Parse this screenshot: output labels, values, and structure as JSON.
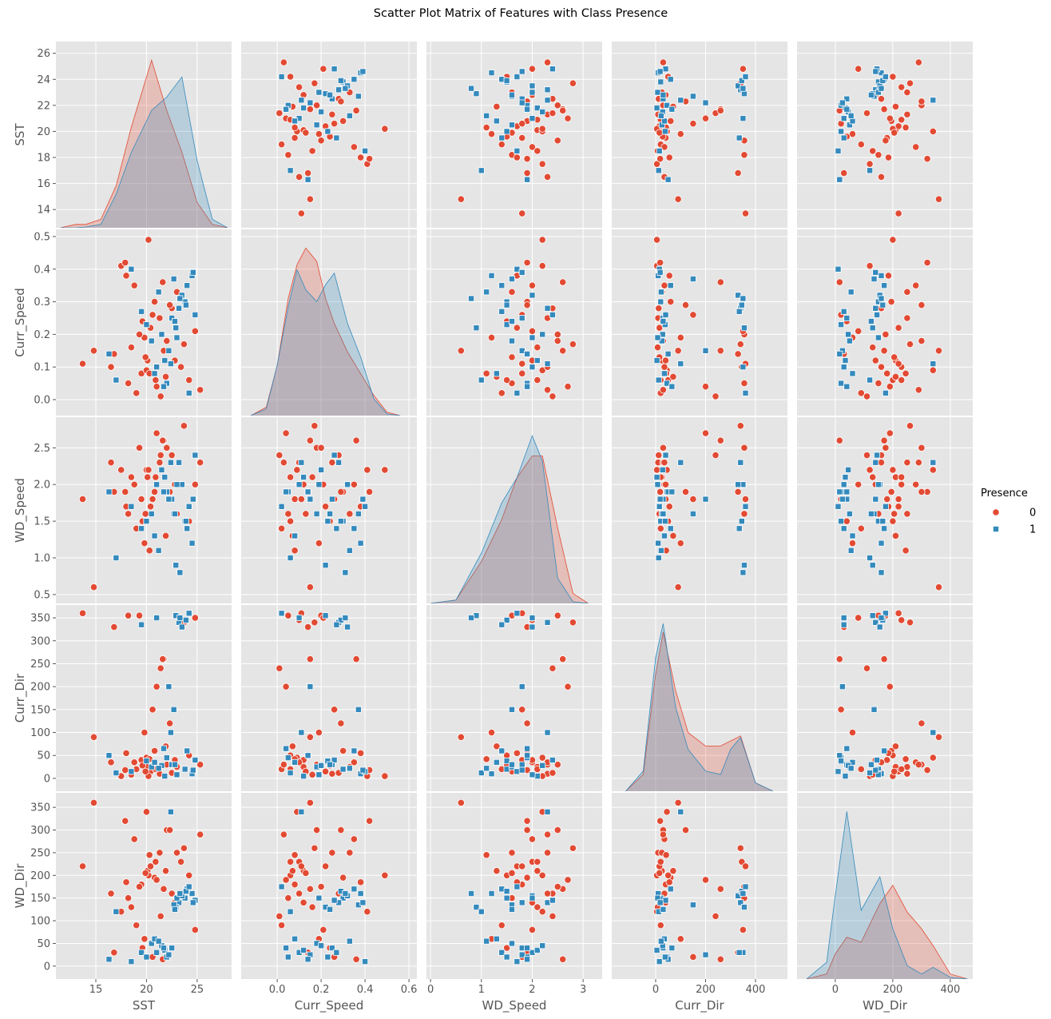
{
  "chart_data": {
    "type": "pairplot",
    "title": "Scatter Plot Matrix of Features with Class Presence",
    "legend_title": "Presence",
    "legend": "right",
    "grid": true,
    "variables": [
      {
        "name": "SST",
        "xlim": [
          11.06,
          28.4
        ],
        "ylim": [
          12.6,
          26.9
        ],
        "ticks_x": [
          15,
          20,
          25
        ],
        "ticks_y": [
          14,
          16,
          18,
          20,
          22,
          24,
          26
        ],
        "kde_x": [
          11.5,
          13,
          14,
          15.5,
          17,
          18.5,
          20.5,
          22,
          23.5,
          25,
          26.5,
          28
        ],
        "kde": [
          [
            0,
            0.02,
            0.02,
            0.05,
            0.25,
            0.6,
            1.0,
            0.7,
            0.45,
            0.15,
            0.02,
            0
          ],
          [
            0,
            0,
            0.005,
            0.02,
            0.2,
            0.45,
            0.7,
            0.78,
            0.9,
            0.4,
            0.05,
            0
          ]
        ]
      },
      {
        "name": "Curr_Speed",
        "xlim": [
          -0.164,
          0.636
        ],
        "ylim": [
          -0.049,
          0.522
        ],
        "ticks_x": [
          {
            "value": 0,
            "label": "0.0"
          },
          0.2,
          0.4,
          0.6
        ],
        "ticks_y": [
          {
            "value": 0,
            "label": "0.0"
          },
          0.1,
          0.2,
          0.3,
          0.4,
          0.5
        ],
        "kde_x": [
          -0.12,
          -0.05,
          0,
          0.05,
          0.09,
          0.13,
          0.18,
          0.22,
          0.26,
          0.32,
          0.38,
          0.44,
          0.5,
          0.56
        ],
        "kde": [
          [
            0,
            0.05,
            0.3,
            0.7,
            0.9,
            1.0,
            0.92,
            0.7,
            0.55,
            0.38,
            0.25,
            0.12,
            0.02,
            0
          ],
          [
            0,
            0.04,
            0.3,
            0.65,
            0.87,
            0.75,
            0.68,
            0.78,
            0.85,
            0.55,
            0.35,
            0.1,
            0.01,
            0
          ]
        ]
      },
      {
        "name": "WD_Speed",
        "xlim": [
          -0.08,
          3.375
        ],
        "ylim": [
          0.379,
          2.918
        ],
        "ticks_x": [
          0,
          1,
          2,
          3
        ],
        "ticks_y": [
          0.5,
          {
            "value": 1,
            "label": "1.0"
          },
          1.5,
          {
            "value": 2,
            "label": "2.0"
          },
          2.5
        ],
        "kde_x": [
          0,
          0.5,
          1.0,
          1.4,
          1.7,
          2.0,
          2.2,
          2.5,
          2.8,
          3.1
        ],
        "kde": [
          [
            0,
            0.02,
            0.25,
            0.5,
            0.75,
            0.88,
            0.88,
            0.45,
            0.06,
            0
          ],
          [
            0,
            0.02,
            0.3,
            0.6,
            0.75,
            1.0,
            0.85,
            0.15,
            0.01,
            0
          ]
        ]
      },
      {
        "name": "Curr_Dir",
        "xlim": [
          -176,
          528
        ],
        "ylim": [
          -28,
          378
        ],
        "ticks_x": [
          0,
          200,
          400
        ],
        "ticks_y": [
          0,
          50,
          100,
          150,
          200,
          250,
          300,
          350
        ],
        "kde_x": [
          -120,
          -50,
          0,
          30,
          80,
          130,
          200,
          260,
          300,
          340,
          400,
          470
        ],
        "kde": [
          [
            0,
            0.1,
            0.7,
            0.95,
            0.6,
            0.35,
            0.27,
            0.27,
            0.3,
            0.33,
            0.05,
            0
          ],
          [
            0,
            0.12,
            0.8,
            1.0,
            0.5,
            0.25,
            0.12,
            0.1,
            0.25,
            0.32,
            0.05,
            0
          ]
        ]
      },
      {
        "name": "WD_Dir",
        "xlim": [
          -133,
          478
        ],
        "ylim": [
          -28.5,
          382
        ],
        "ticks_x": [
          0,
          200,
          400
        ],
        "ticks_y": [
          0,
          50,
          100,
          150,
          200,
          250,
          300,
          350
        ],
        "kde_x": [
          -100,
          -30,
          0,
          40,
          90,
          155,
          200,
          250,
          300,
          340,
          400,
          460
        ],
        "kde": [
          [
            0,
            0.03,
            0.15,
            0.25,
            0.22,
            0.45,
            0.56,
            0.4,
            0.3,
            0.2,
            0.03,
            0
          ],
          [
            0,
            0.1,
            0.5,
            1.0,
            0.41,
            0.61,
            0.3,
            0.08,
            0.03,
            0.07,
            0.01,
            0
          ]
        ]
      }
    ],
    "series": [
      {
        "name": "0",
        "color": "#e24a33",
        "marker": "circle",
        "values": [
          [
            20.1,
            0.12,
            2.1,
            25,
            210
          ],
          [
            19.5,
            0.08,
            1.8,
            40,
            180
          ],
          [
            21.3,
            0.25,
            2.3,
            10,
            250
          ],
          [
            18.2,
            0.05,
            1.6,
            355,
            150
          ],
          [
            22.0,
            0.18,
            2.5,
            30,
            300
          ],
          [
            20.8,
            0.3,
            1.9,
            60,
            195
          ],
          [
            17.5,
            0.41,
            2.2,
            5,
            120
          ],
          [
            23.4,
            0.1,
            2.0,
            345,
            230
          ],
          [
            19.0,
            0.02,
            1.4,
            20,
            90
          ],
          [
            21.7,
            0.15,
            2.6,
            260,
            170
          ],
          [
            20.4,
            0.22,
            1.7,
            15,
            220
          ],
          [
            18.8,
            0.35,
            2.0,
            35,
            280
          ],
          [
            24.2,
            0.06,
            1.5,
            50,
            200
          ],
          [
            16.8,
            0.14,
            1.9,
            330,
            30
          ],
          [
            22.5,
            0.28,
            2.4,
            12,
            160
          ],
          [
            20.0,
            0.09,
            2.2,
            45,
            340
          ],
          [
            13.7,
            0.11,
            1.8,
            360,
            220
          ],
          [
            19.8,
            0.19,
            1.2,
            100,
            60
          ],
          [
            21.0,
            0.04,
            2.7,
            200,
            190
          ],
          [
            23.0,
            0.33,
            1.6,
            25,
            250
          ],
          [
            18.5,
            0.16,
            2.1,
            8,
            130
          ],
          [
            20.6,
            0.26,
            1.8,
            150,
            20
          ],
          [
            25.3,
            0.03,
            2.3,
            30,
            290
          ],
          [
            19.3,
            0.2,
            2.5,
            355,
            175
          ],
          [
            21.9,
            0.07,
            1.3,
            70,
            210
          ],
          [
            17.9,
            0.42,
            1.9,
            18,
            320
          ],
          [
            22.8,
            0.12,
            2.0,
            40,
            140
          ],
          [
            20.2,
            0.49,
            2.2,
            5,
            200
          ],
          [
            14.8,
            0.15,
            0.6,
            90,
            360
          ],
          [
            21.4,
            0.01,
            2.4,
            240,
            110
          ],
          [
            19.6,
            0.24,
            1.5,
            28,
            40
          ],
          [
            23.7,
            0.17,
            2.8,
            340,
            260
          ],
          [
            18.0,
            0.38,
            1.7,
            55,
            185
          ],
          [
            20.9,
            0.06,
            2.1,
            20,
            230
          ],
          [
            22.3,
            0.29,
            1.9,
            120,
            300
          ],
          [
            16.5,
            0.1,
            2.3,
            35,
            160
          ],
          [
            24.8,
            0.21,
            2.0,
            350,
            80
          ],
          [
            19.9,
            0.13,
            1.6,
            15,
            205
          ],
          [
            21.6,
            0.36,
            2.6,
            260,
            15
          ],
          [
            20.3,
            0.08,
            1.1,
            42,
            245
          ]
        ]
      },
      {
        "name": "1",
        "color": "#348abd",
        "marker": "square",
        "values": [
          [
            22.5,
            0.25,
            1.8,
            30,
            40
          ],
          [
            23.8,
            0.3,
            1.5,
            20,
            150
          ],
          [
            21.0,
            0.1,
            2.0,
            350,
            30
          ],
          [
            24.5,
            0.38,
            1.2,
            10,
            160
          ],
          [
            22.0,
            0.05,
            1.9,
            45,
            20
          ],
          [
            23.2,
            0.28,
            2.3,
            340,
            140
          ],
          [
            20.5,
            0.18,
            1.6,
            25,
            50
          ],
          [
            24.0,
            0.35,
            1.4,
            60,
            170
          ],
          [
            21.8,
            0.12,
            2.1,
            5,
            35
          ],
          [
            22.9,
            0.22,
            0.9,
            355,
            130
          ],
          [
            18.5,
            0.4,
            1.7,
            15,
            10
          ],
          [
            23.5,
            0.32,
            2.0,
            330,
            155
          ],
          [
            20.8,
            0.08,
            1.3,
            35,
            60
          ],
          [
            24.8,
            0.26,
            2.4,
            40,
            145
          ],
          [
            22.2,
            0.15,
            1.8,
            200,
            25
          ],
          [
            17.0,
            0.06,
            1.0,
            12,
            120
          ],
          [
            23.9,
            0.29,
            1.5,
            345,
            165
          ],
          [
            21.5,
            0.2,
            2.2,
            28,
            45
          ],
          [
            22.7,
            0.37,
            1.6,
            150,
            135
          ],
          [
            16.3,
            0.14,
            1.9,
            50,
            15
          ],
          [
            24.2,
            0.02,
            1.7,
            360,
            175
          ],
          [
            21.2,
            0.33,
            1.1,
            22,
            55
          ],
          [
            23.0,
            0.19,
            2.0,
            8,
            150
          ],
          [
            19.5,
            0.27,
            1.4,
            335,
            30
          ],
          [
            22.4,
            0.11,
            2.3,
            100,
            340
          ],
          [
            24.6,
            0.39,
            1.8,
            18,
            140
          ],
          [
            20.0,
            0.23,
            1.5,
            38,
            20
          ],
          [
            23.3,
            0.31,
            0.8,
            350,
            160
          ],
          [
            21.7,
            0.04,
            1.9,
            65,
            40
          ],
          [
            22.8,
            0.24,
            1.6,
            30,
            125
          ]
        ]
      }
    ]
  }
}
